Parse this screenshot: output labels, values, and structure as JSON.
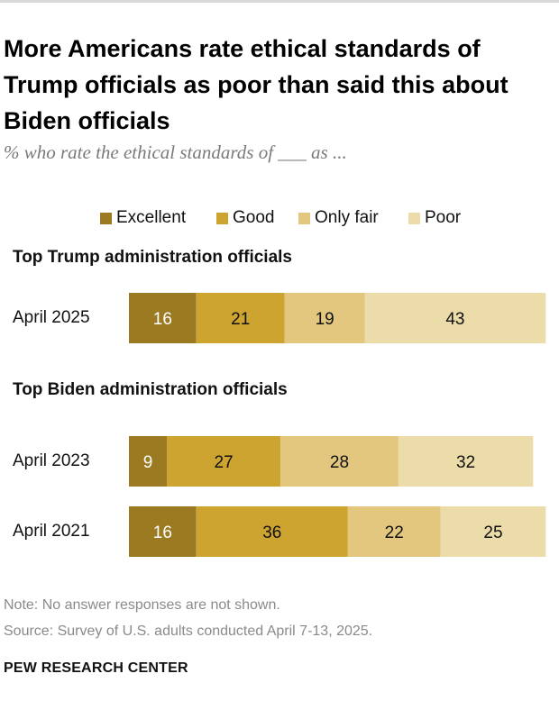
{
  "title": "More Americans rate ethical standards of Trump officials as poor than said this about Biden officials",
  "subtitle": "% who rate the ethical standards of ___ as ...",
  "note": "Note: No answer responses are not shown.",
  "source": "Source: Survey of U.S. adults conducted April 7-13, 2025.",
  "org": "PEW RESEARCH CENTER",
  "colors": {
    "Excellent": "#9b7a22",
    "Good": "#cea430",
    "Only fair": "#e3c77f",
    "Poor": "#ecdcaa"
  },
  "chart_data": {
    "type": "bar",
    "orientation": "horizontal-stacked",
    "series_names": [
      "Excellent",
      "Good",
      "Only fair",
      "Poor"
    ],
    "groups": [
      {
        "title": "Top Trump administration officials",
        "rows": [
          {
            "label": "April 2025",
            "values": [
              16,
              21,
              19,
              43
            ]
          }
        ]
      },
      {
        "title": "Top Biden administration officials",
        "rows": [
          {
            "label": "April 2023",
            "values": [
              9,
              27,
              28,
              32
            ]
          },
          {
            "label": "April 2021",
            "values": [
              16,
              36,
              22,
              25
            ]
          }
        ]
      }
    ],
    "xlim": [
      0,
      100
    ]
  }
}
